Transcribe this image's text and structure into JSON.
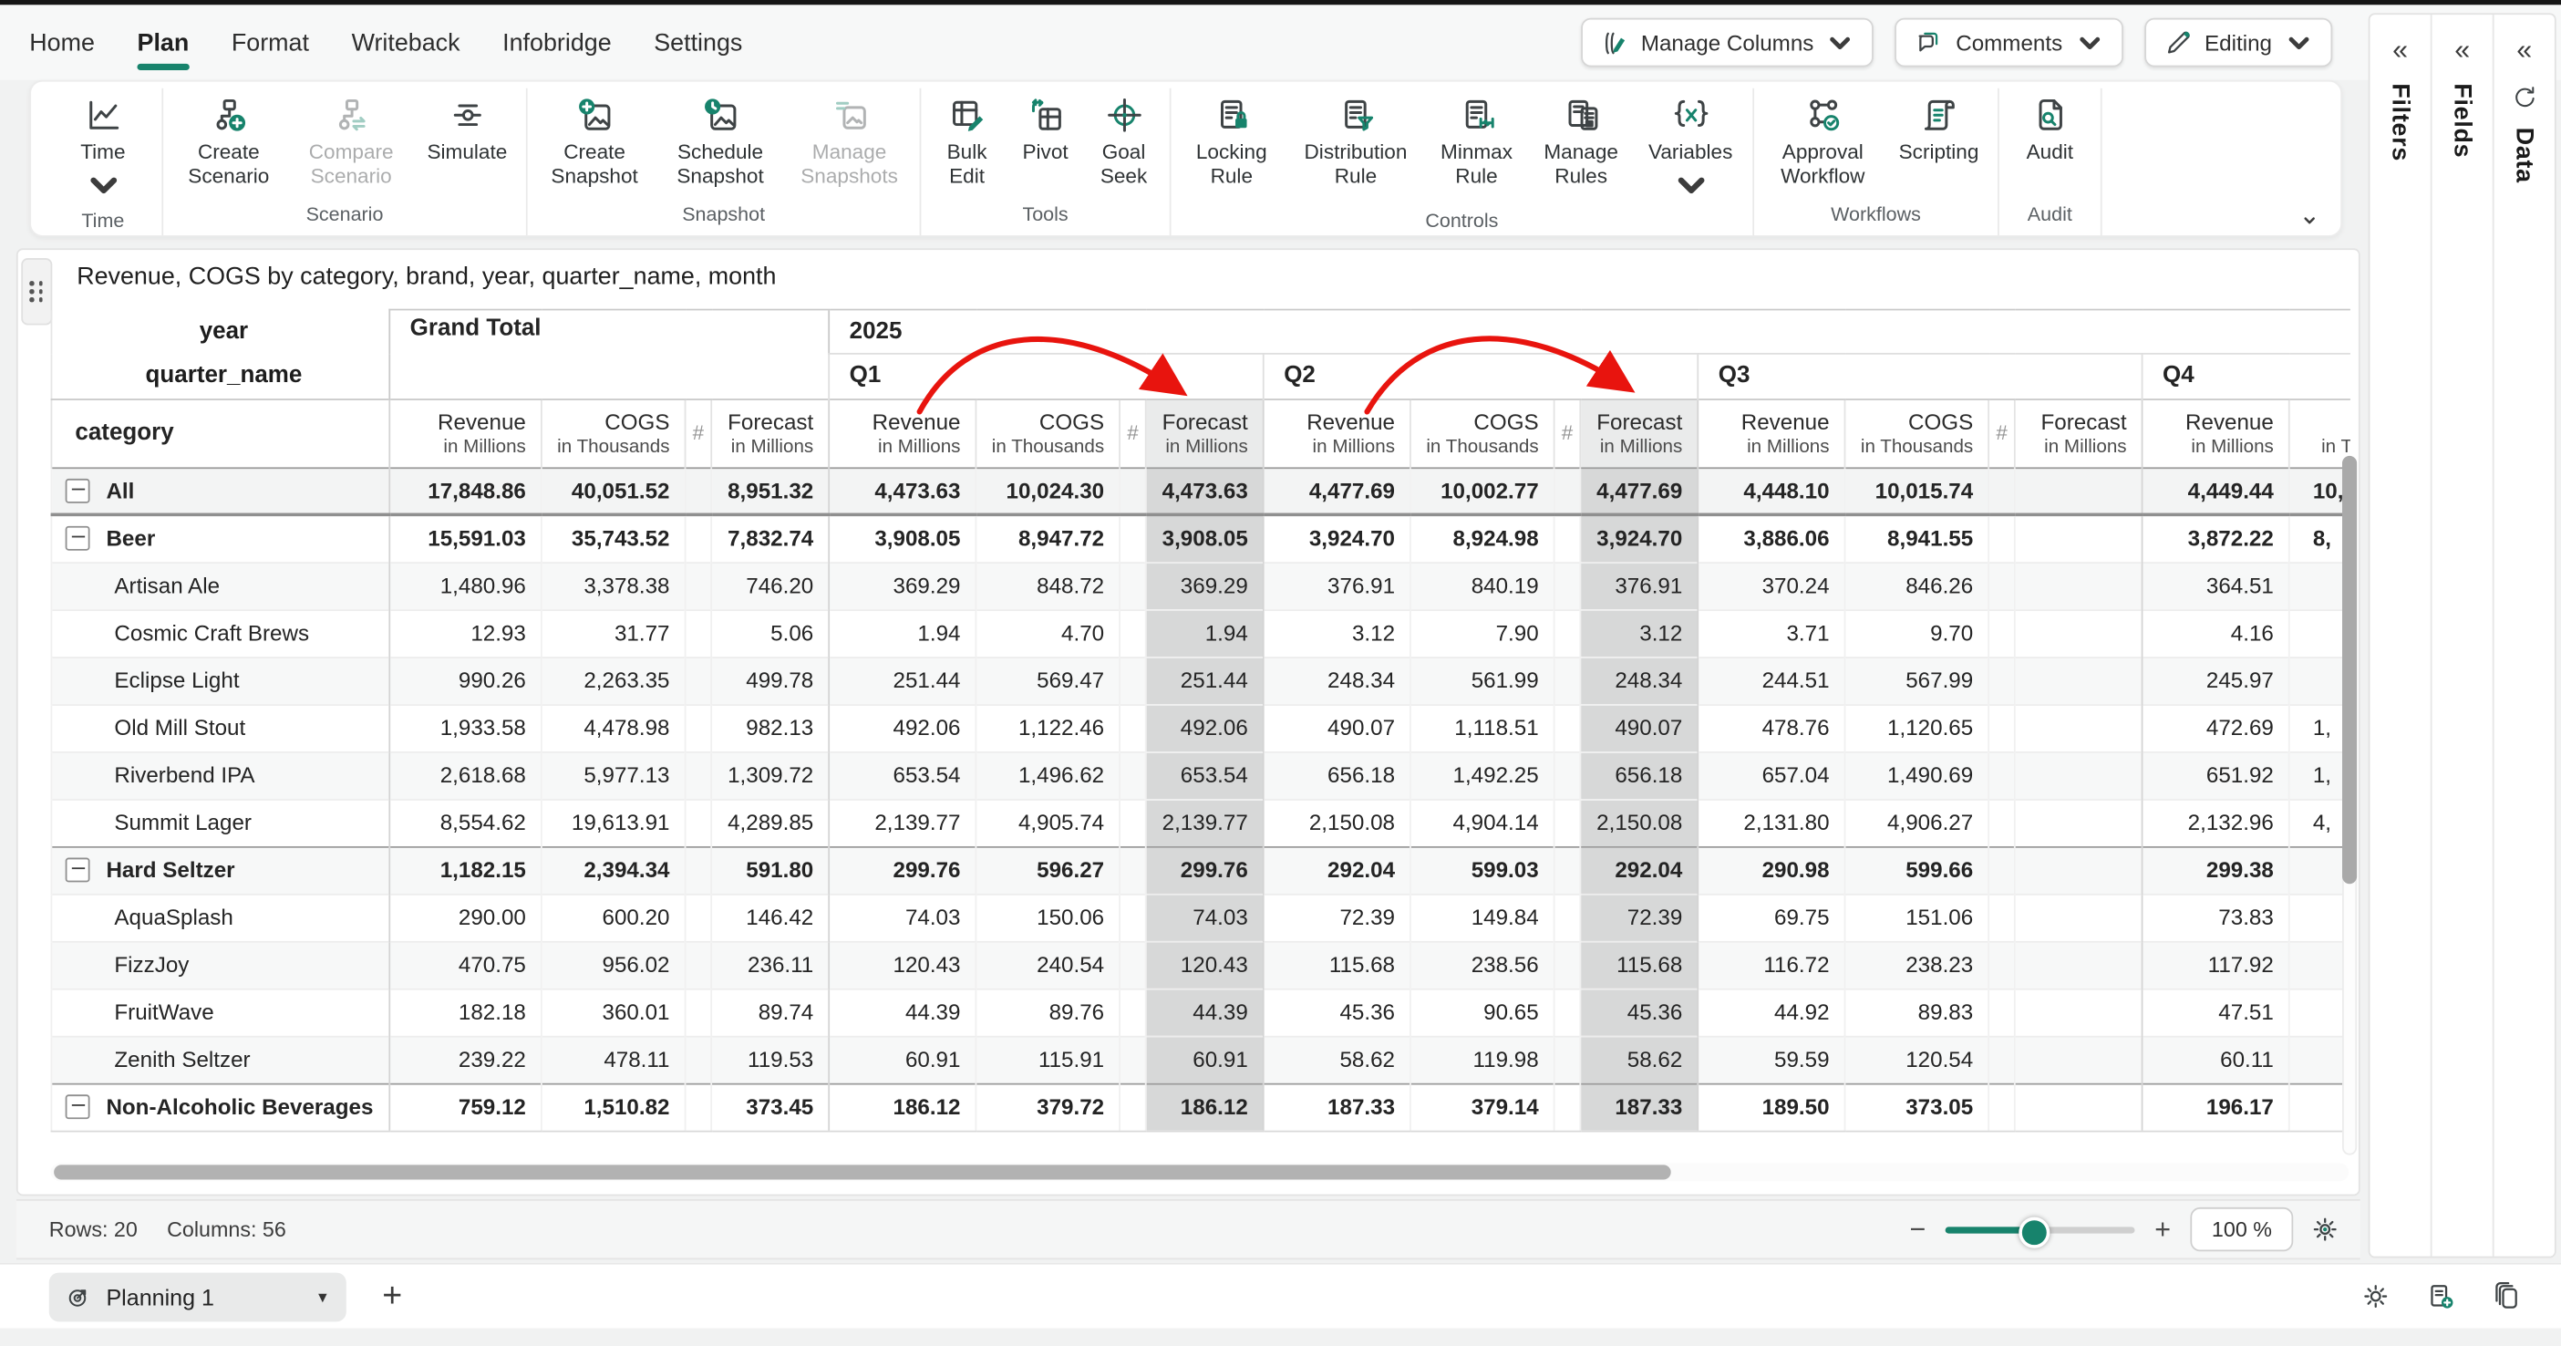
{
  "accent_color": "#17836c",
  "annotation": {
    "arrow_color": "#e8140e",
    "arrows": [
      "q1-revenue-to-forecast",
      "q2-revenue-to-forecast"
    ]
  },
  "menu": {
    "items": [
      "Home",
      "Plan",
      "Format",
      "Writeback",
      "Infobridge",
      "Settings"
    ],
    "active": "Plan"
  },
  "topbar": {
    "manage_columns": "Manage Columns",
    "comments": "Comments",
    "editing": "Editing"
  },
  "ribbon": {
    "groups": [
      {
        "label": "Time",
        "buttons": [
          {
            "label": "Time",
            "icon": "time-icon",
            "chevron": true
          }
        ]
      },
      {
        "label": "Scenario",
        "buttons": [
          {
            "label": "Create Scenario",
            "icon": "create-scenario-icon"
          },
          {
            "label": "Compare Scenario",
            "icon": "compare-scenario-icon",
            "disabled": true
          },
          {
            "label": "Simulate",
            "icon": "simulate-icon"
          }
        ]
      },
      {
        "label": "Snapshot",
        "buttons": [
          {
            "label": "Create Snapshot",
            "icon": "create-snapshot-icon"
          },
          {
            "label": "Schedule Snapshot",
            "icon": "schedule-snapshot-icon"
          },
          {
            "label": "Manage Snapshots",
            "icon": "manage-snapshots-icon",
            "disabled": true
          }
        ]
      },
      {
        "label": "Tools",
        "buttons": [
          {
            "label": "Bulk Edit",
            "icon": "bulk-edit-icon"
          },
          {
            "label": "Pivot",
            "icon": "pivot-icon"
          },
          {
            "label": "Goal Seek",
            "icon": "goal-seek-icon"
          }
        ]
      },
      {
        "label": "Controls",
        "buttons": [
          {
            "label": "Locking Rule",
            "icon": "locking-rule-icon"
          },
          {
            "label": "Distribution Rule",
            "icon": "distribution-rule-icon"
          },
          {
            "label": "Minmax Rule",
            "icon": "minmax-rule-icon"
          },
          {
            "label": "Manage Rules",
            "icon": "manage-rules-icon"
          },
          {
            "label": "Variables",
            "icon": "variables-icon",
            "chevron": true
          }
        ]
      },
      {
        "label": "Workflows",
        "buttons": [
          {
            "label": "Approval Workflow",
            "icon": "approval-workflow-icon"
          },
          {
            "label": "Scripting",
            "icon": "scripting-icon"
          }
        ]
      },
      {
        "label": "Audit",
        "buttons": [
          {
            "label": "Audit",
            "icon": "audit-icon"
          }
        ]
      }
    ]
  },
  "side_panels": {
    "filters": "Filters",
    "fields": "Fields",
    "data": "Data"
  },
  "sheet": {
    "title": "Revenue, COGS by category, brand, year, quarter_name, month",
    "axis": {
      "year": "year",
      "quarter": "quarter_name",
      "category": "category"
    },
    "col_headers": {
      "grand_total": "Grand Total",
      "year_value": "2025",
      "quarters": [
        "Q1",
        "Q2",
        "Q3",
        "Q4"
      ]
    },
    "measures": {
      "revenue": "Revenue",
      "unit_millions": "in Millions",
      "cogs": "COGS",
      "unit_thousands": "in Thousands",
      "forecast": "Forecast",
      "hash": "#"
    },
    "rows": [
      {
        "label": "All",
        "level": 0,
        "group": true,
        "values": [
          "17,848.86",
          "40,051.52",
          "8,951.32",
          "4,473.63",
          "10,024.30",
          "4,473.63",
          "4,477.69",
          "10,002.77",
          "4,477.69",
          "4,448.10",
          "10,015.74",
          "",
          "4,449.44",
          "10,"
        ]
      },
      {
        "label": "Beer",
        "level": 0,
        "group": true,
        "values": [
          "15,591.03",
          "35,743.52",
          "7,832.74",
          "3,908.05",
          "8,947.72",
          "3,908.05",
          "3,924.70",
          "8,924.98",
          "3,924.70",
          "3,886.06",
          "8,941.55",
          "",
          "3,872.22",
          "8,"
        ]
      },
      {
        "label": "Artisan Ale",
        "level": 1,
        "values": [
          "1,480.96",
          "3,378.38",
          "746.20",
          "369.29",
          "848.72",
          "369.29",
          "376.91",
          "840.19",
          "376.91",
          "370.24",
          "846.26",
          "",
          "364.51",
          ""
        ]
      },
      {
        "label": "Cosmic Craft Brews",
        "level": 1,
        "values": [
          "12.93",
          "31.77",
          "5.06",
          "1.94",
          "4.70",
          "1.94",
          "3.12",
          "7.90",
          "3.12",
          "3.71",
          "9.70",
          "",
          "4.16",
          ""
        ]
      },
      {
        "label": "Eclipse Light",
        "level": 1,
        "values": [
          "990.26",
          "2,263.35",
          "499.78",
          "251.44",
          "569.47",
          "251.44",
          "248.34",
          "561.99",
          "248.34",
          "244.51",
          "567.99",
          "",
          "245.97",
          ""
        ]
      },
      {
        "label": "Old Mill Stout",
        "level": 1,
        "values": [
          "1,933.58",
          "4,478.98",
          "982.13",
          "492.06",
          "1,122.46",
          "492.06",
          "490.07",
          "1,118.51",
          "490.07",
          "478.76",
          "1,120.65",
          "",
          "472.69",
          "1,"
        ]
      },
      {
        "label": "Riverbend IPA",
        "level": 1,
        "values": [
          "2,618.68",
          "5,977.13",
          "1,309.72",
          "653.54",
          "1,496.62",
          "653.54",
          "656.18",
          "1,492.25",
          "656.18",
          "657.04",
          "1,490.69",
          "",
          "651.92",
          "1,"
        ]
      },
      {
        "label": "Summit Lager",
        "level": 1,
        "values": [
          "8,554.62",
          "19,613.91",
          "4,289.85",
          "2,139.77",
          "4,905.74",
          "2,139.77",
          "2,150.08",
          "4,904.14",
          "2,150.08",
          "2,131.80",
          "4,906.27",
          "",
          "2,132.96",
          "4,"
        ]
      },
      {
        "label": "Hard Seltzer",
        "level": 0,
        "group": true,
        "values": [
          "1,182.15",
          "2,394.34",
          "591.80",
          "299.76",
          "596.27",
          "299.76",
          "292.04",
          "599.03",
          "292.04",
          "290.98",
          "599.66",
          "",
          "299.38",
          ""
        ]
      },
      {
        "label": "AquaSplash",
        "level": 1,
        "values": [
          "290.00",
          "600.20",
          "146.42",
          "74.03",
          "150.06",
          "74.03",
          "72.39",
          "149.84",
          "72.39",
          "69.75",
          "151.06",
          "",
          "73.83",
          ""
        ]
      },
      {
        "label": "FizzJoy",
        "level": 1,
        "values": [
          "470.75",
          "956.02",
          "236.11",
          "120.43",
          "240.54",
          "120.43",
          "115.68",
          "238.56",
          "115.68",
          "116.72",
          "238.23",
          "",
          "117.92",
          ""
        ]
      },
      {
        "label": "FruitWave",
        "level": 1,
        "values": [
          "182.18",
          "360.01",
          "89.74",
          "44.39",
          "89.76",
          "44.39",
          "45.36",
          "90.65",
          "45.36",
          "44.92",
          "89.83",
          "",
          "47.51",
          ""
        ]
      },
      {
        "label": "Zenith Seltzer",
        "level": 1,
        "values": [
          "239.22",
          "478.11",
          "119.53",
          "60.91",
          "115.91",
          "60.91",
          "58.62",
          "119.98",
          "58.62",
          "59.59",
          "120.54",
          "",
          "60.11",
          ""
        ]
      },
      {
        "label": "Non-Alcoholic Beverages",
        "level": 0,
        "group": true,
        "values": [
          "759.12",
          "1,510.82",
          "373.45",
          "186.12",
          "379.72",
          "186.12",
          "187.33",
          "379.14",
          "187.33",
          "189.50",
          "373.05",
          "",
          "196.17",
          ""
        ]
      }
    ]
  },
  "status_bar": {
    "rows": "Rows: 20",
    "columns": "Columns: 56",
    "zoom": "100 %"
  },
  "tab_bar": {
    "active_tab": "Planning 1"
  }
}
